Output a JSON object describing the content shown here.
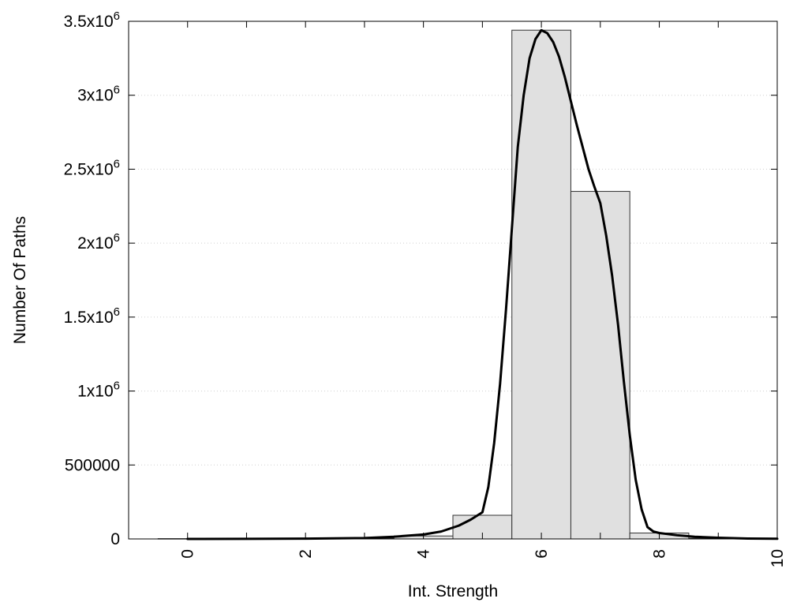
{
  "chart_data": {
    "type": "bar",
    "title": "",
    "xlabel": "Int. Strength",
    "ylabel": "Number Of Paths",
    "xlim": [
      -1,
      10
    ],
    "ylim": [
      0,
      3500000
    ],
    "x_ticks": [
      {
        "value": 0,
        "label": "0"
      },
      {
        "value": 2,
        "label": "2"
      },
      {
        "value": 4,
        "label": "4"
      },
      {
        "value": 6,
        "label": "6"
      },
      {
        "value": 8,
        "label": "8"
      },
      {
        "value": 10,
        "label": "10"
      }
    ],
    "y_ticks": [
      {
        "value": 0,
        "label": "0",
        "sup": ""
      },
      {
        "value": 500000,
        "label": "500000",
        "sup": ""
      },
      {
        "value": 1000000,
        "label": "1x10",
        "sup": "6"
      },
      {
        "value": 1500000,
        "label": "1.5x10",
        "sup": "6"
      },
      {
        "value": 2000000,
        "label": "2x10",
        "sup": "6"
      },
      {
        "value": 2500000,
        "label": "2.5x10",
        "sup": "6"
      },
      {
        "value": 3000000,
        "label": "3x10",
        "sup": "6"
      },
      {
        "value": 3500000,
        "label": "3.5x10",
        "sup": "6"
      }
    ],
    "grid": "horizontal dotted",
    "bars": {
      "bin_width": 1,
      "fill": "#e0e0e0",
      "x": [
        0,
        1,
        2,
        3,
        4,
        5,
        6,
        7,
        8,
        9
      ],
      "values": [
        2000,
        2000,
        3000,
        5000,
        20000,
        160000,
        3440000,
        2350000,
        40000,
        5000
      ]
    },
    "fit_curve": {
      "color": "#000000",
      "x": [
        0,
        1,
        2,
        3,
        3.5,
        4,
        4.3,
        4.6,
        4.8,
        5.0,
        5.1,
        5.2,
        5.3,
        5.4,
        5.5,
        5.6,
        5.7,
        5.8,
        5.9,
        6.0,
        6.1,
        6.2,
        6.3,
        6.4,
        6.5,
        6.6,
        6.7,
        6.8,
        6.9,
        7.0,
        7.1,
        7.2,
        7.3,
        7.4,
        7.5,
        7.6,
        7.7,
        7.8,
        7.9,
        8.0,
        8.1,
        8.3,
        8.6,
        9.0,
        9.5,
        10
      ],
      "y": [
        0,
        500,
        2000,
        6000,
        15000,
        30000,
        50000,
        90000,
        130000,
        180000,
        350000,
        650000,
        1050000,
        1550000,
        2100000,
        2650000,
        3000000,
        3250000,
        3380000,
        3440000,
        3420000,
        3360000,
        3260000,
        3120000,
        2960000,
        2800000,
        2650000,
        2500000,
        2380000,
        2270000,
        2050000,
        1780000,
        1450000,
        1060000,
        700000,
        400000,
        200000,
        80000,
        50000,
        40000,
        35000,
        25000,
        15000,
        8000,
        3000,
        1000
      ]
    }
  }
}
